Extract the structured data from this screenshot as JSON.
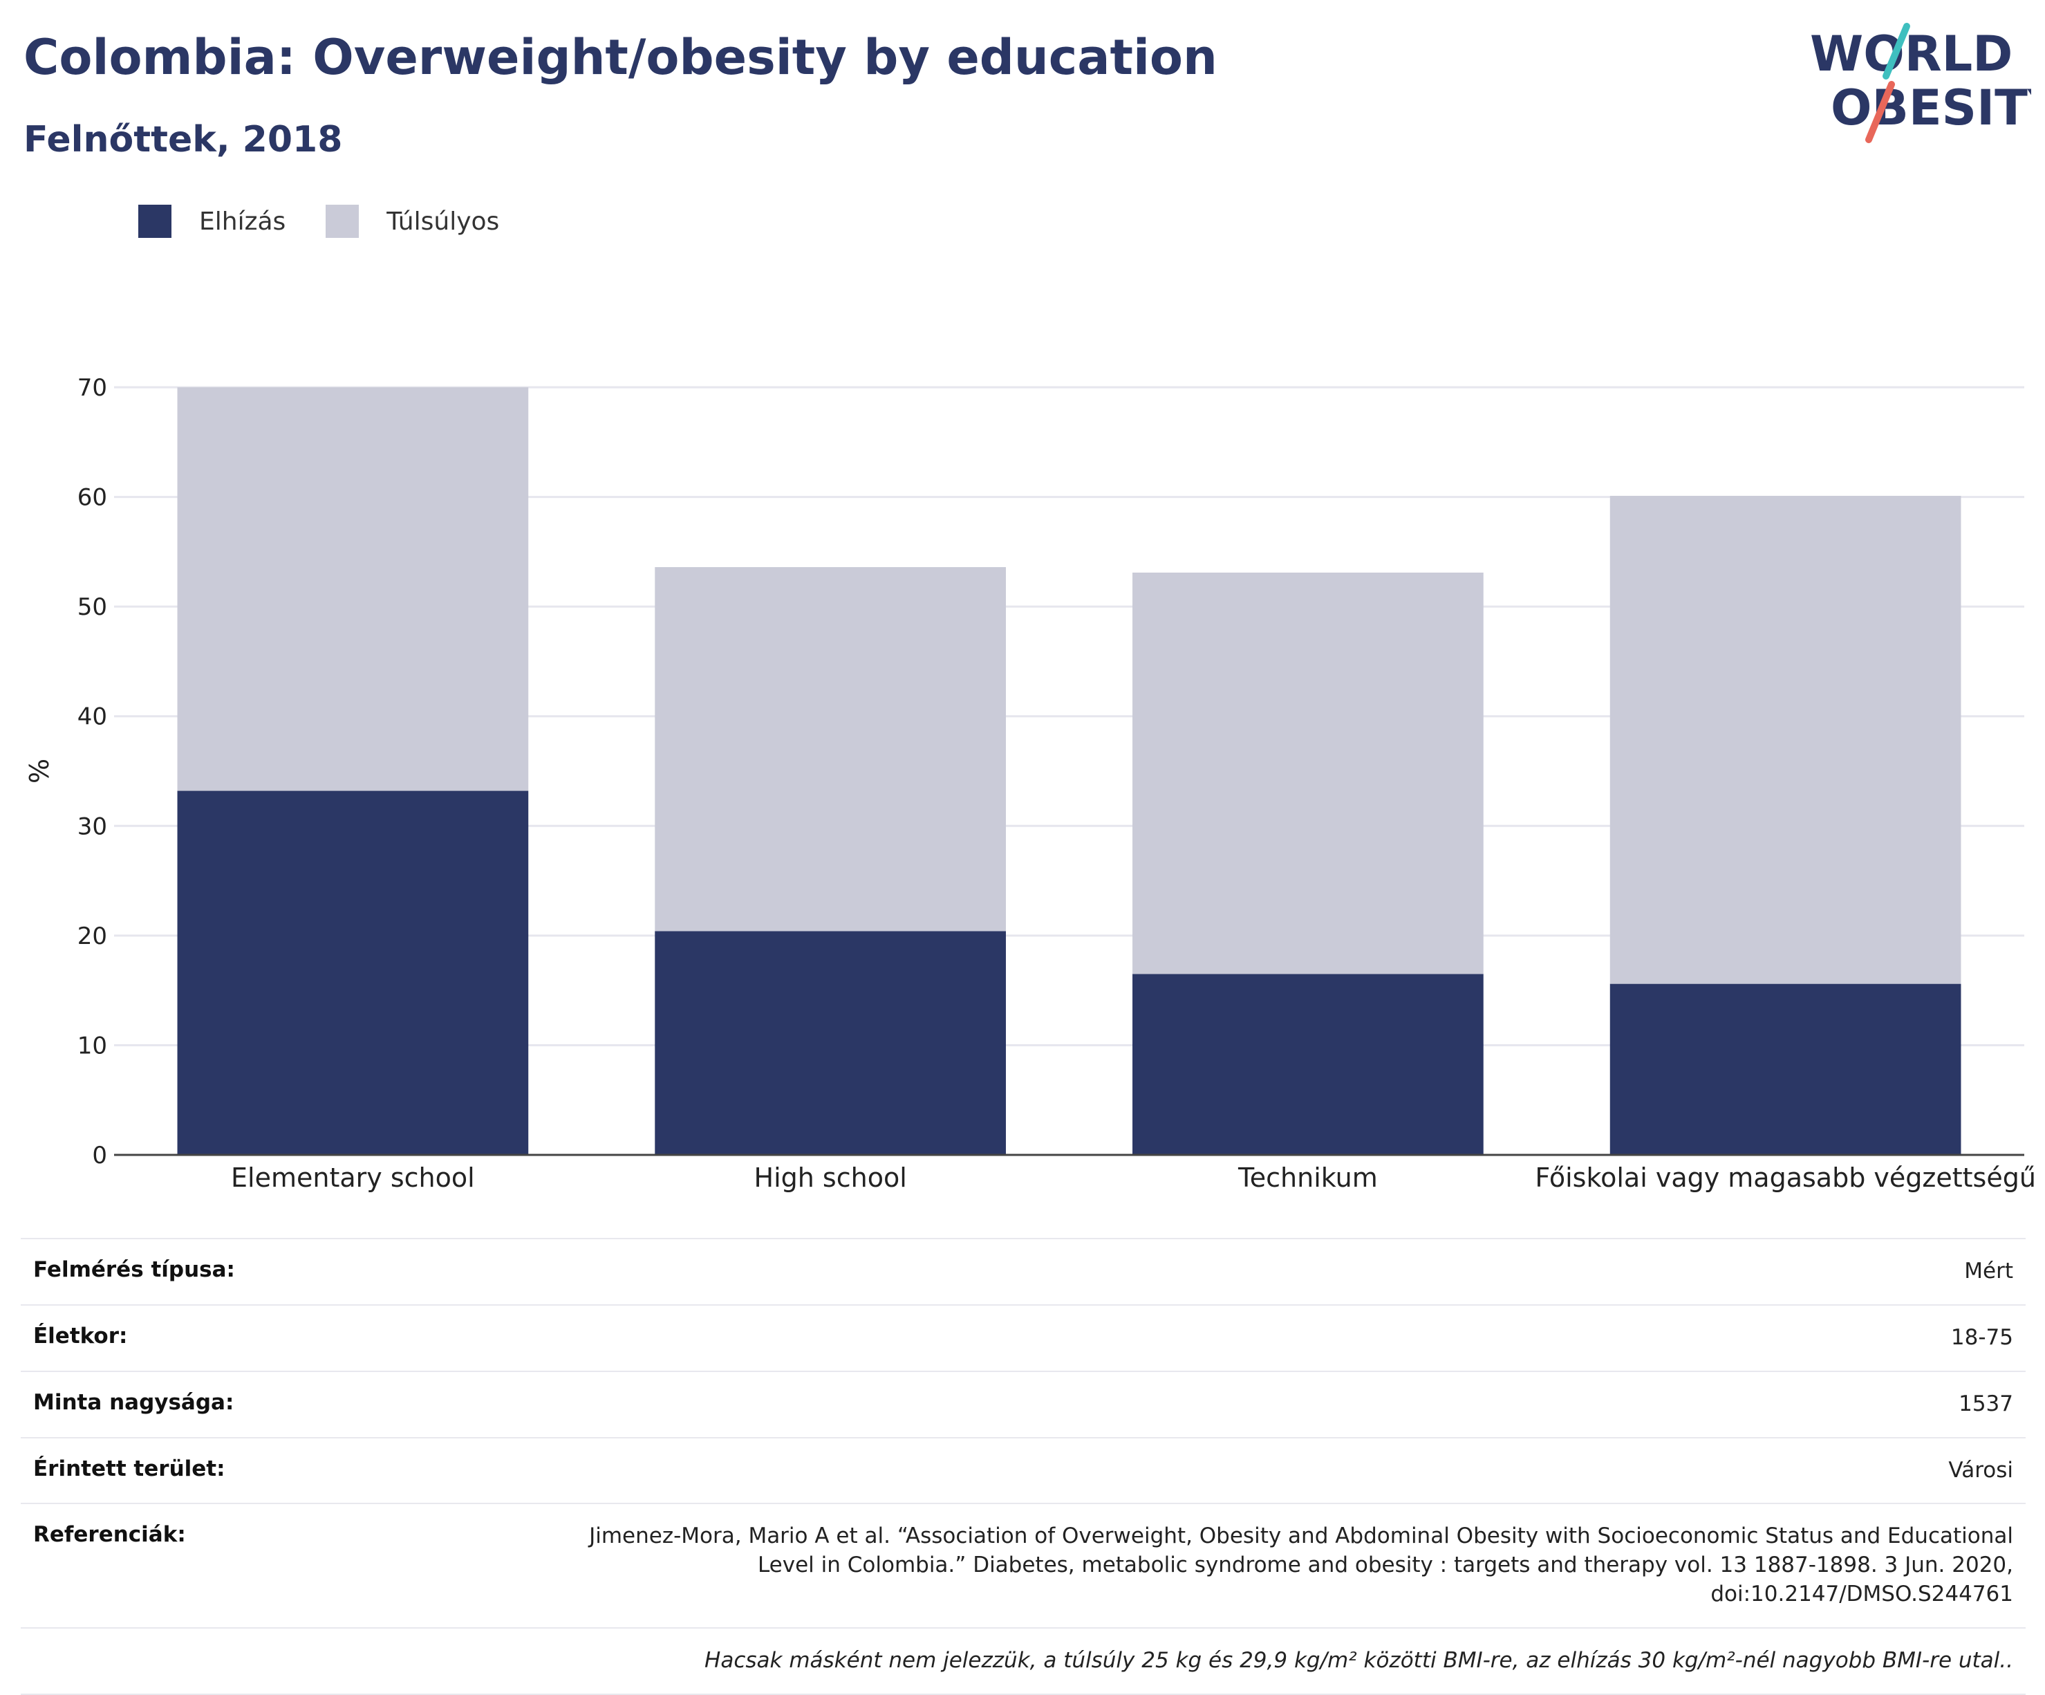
{
  "header": {
    "title": "Colombia: Overweight/obesity by education",
    "subtitle": "Felnőttek, 2018",
    "logo_line1": "WORLD",
    "logo_line2": "OBESITY"
  },
  "colors": {
    "obesity": "#2b3765",
    "overweight": "#cacbd8",
    "grid": "#e6e6ee",
    "logo_text": "#2b3765",
    "logo_teal": "#3fbfbf",
    "logo_red": "#e8675a"
  },
  "chart_data": {
    "type": "bar",
    "stacked": true,
    "categories": [
      "Elementary school",
      "High school",
      "Technikum",
      "Főiskolai vagy magasabb végzettségű"
    ],
    "series": [
      {
        "name": "Elhízás",
        "color": "#2b3765",
        "values": [
          33.2,
          20.4,
          16.5,
          15.6
        ]
      },
      {
        "name": "Túlsúlyos",
        "color": "#cacbd8",
        "values": [
          36.8,
          33.2,
          36.6,
          44.5
        ]
      }
    ],
    "ylabel": "%",
    "ylim": [
      0,
      70
    ],
    "yticks": [
      0,
      10,
      20,
      30,
      40,
      50,
      60,
      70
    ],
    "grid": true,
    "legend_position": "top-left"
  },
  "info": {
    "survey_type_label": "Felmérés típusa:",
    "survey_type_value": "Mért",
    "age_label": "Életkor:",
    "age_value": "18-75",
    "sample_label": "Minta nagysága:",
    "sample_value": "1537",
    "area_label": "Érintett terület:",
    "area_value": "Városi",
    "references_label": "Referenciák:",
    "references_value": "Jimenez-Mora, Mario A et al. “Association of Overweight, Obesity and Abdominal Obesity with Socioeconomic Status and Educational Level in Colombia.” Diabetes, metabolic syndrome and obesity : targets and therapy vol. 13 1887-1898. 3 Jun. 2020, doi:10.2147/DMSO.S244761",
    "note": "Hacsak másként nem jelezzük, a túlsúly 25 kg és 29,9 kg/m² közötti BMI-re, az elhízás 30 kg/m²-nél nagyobb BMI-re utal.."
  }
}
